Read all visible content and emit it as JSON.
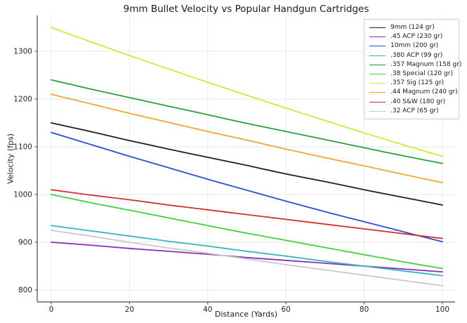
{
  "chart_data": {
    "type": "line",
    "title": "9mm Bullet Velocity vs Popular Handgun Cartridges",
    "xlabel": "Distance (Yards)",
    "ylabel": "Velocity (fps)",
    "x": [
      0,
      10,
      20,
      30,
      40,
      50,
      60,
      70,
      80,
      90,
      100
    ],
    "x_ticks": [
      0,
      20,
      40,
      60,
      80,
      100
    ],
    "y_ticks": [
      800,
      900,
      1000,
      1100,
      1200,
      1300
    ],
    "xlim": [
      -3.6,
      103.2
    ],
    "ylim": [
      775,
      1375
    ],
    "grid": true,
    "legend_position": "upper right",
    "series": [
      {
        "name": "9mm (124 gr)",
        "color": "#1f1f1f",
        "values": [
          1150,
          1132,
          1113,
          1095,
          1078,
          1061,
          1043,
          1027,
          1010,
          994,
          978
        ]
      },
      {
        "name": ".45 ACP (230 gr)",
        "color": "#8a2fb8",
        "values": [
          900,
          894,
          887,
          881,
          875,
          868,
          862,
          856,
          850,
          844,
          838
        ]
      },
      {
        "name": "10mm (200 gr)",
        "color": "#2750d2",
        "values": [
          1130,
          1105,
          1080,
          1056,
          1032,
          1009,
          986,
          964,
          943,
          922,
          901
        ]
      },
      {
        "name": ".380 ACP (99 gr)",
        "color": "#35b4c4",
        "values": [
          935,
          924,
          913,
          902,
          892,
          881,
          871,
          860,
          850,
          840,
          830
        ]
      },
      {
        "name": ".357 Magnum (158 gr)",
        "color": "#2d9e40",
        "values": [
          1240,
          1221,
          1203,
          1185,
          1167,
          1149,
          1132,
          1115,
          1098,
          1081,
          1065
        ]
      },
      {
        "name": ".38 Special (120 gr)",
        "color": "#3cd43c",
        "values": [
          1000,
          983,
          967,
          951,
          935,
          919,
          904,
          889,
          874,
          859,
          845
        ]
      },
      {
        "name": ".357 Sig (125 gr)",
        "color": "#c6ef2d",
        "values": [
          1350,
          1320,
          1291,
          1263,
          1235,
          1208,
          1181,
          1155,
          1129,
          1104,
          1080
        ]
      },
      {
        "name": ".44 Magnum (240 gr)",
        "color": "#f4a62a",
        "values": [
          1210,
          1190,
          1170,
          1151,
          1132,
          1114,
          1095,
          1077,
          1060,
          1042,
          1025
        ]
      },
      {
        "name": ".40 S&W (180 gr)",
        "color": "#d62f2f",
        "values": [
          1010,
          999,
          989,
          978,
          968,
          958,
          948,
          938,
          928,
          918,
          908
        ]
      },
      {
        "name": ".32 ACP (65 gr)",
        "color": "#c9c9c9",
        "values": [
          925,
          913,
          900,
          888,
          877,
          865,
          853,
          842,
          831,
          820,
          809
        ]
      }
    ],
    "style": {
      "grid_color": "#e7e7e7",
      "spine_color": "#4a4a4a",
      "tick_label_color": "#262626"
    }
  }
}
